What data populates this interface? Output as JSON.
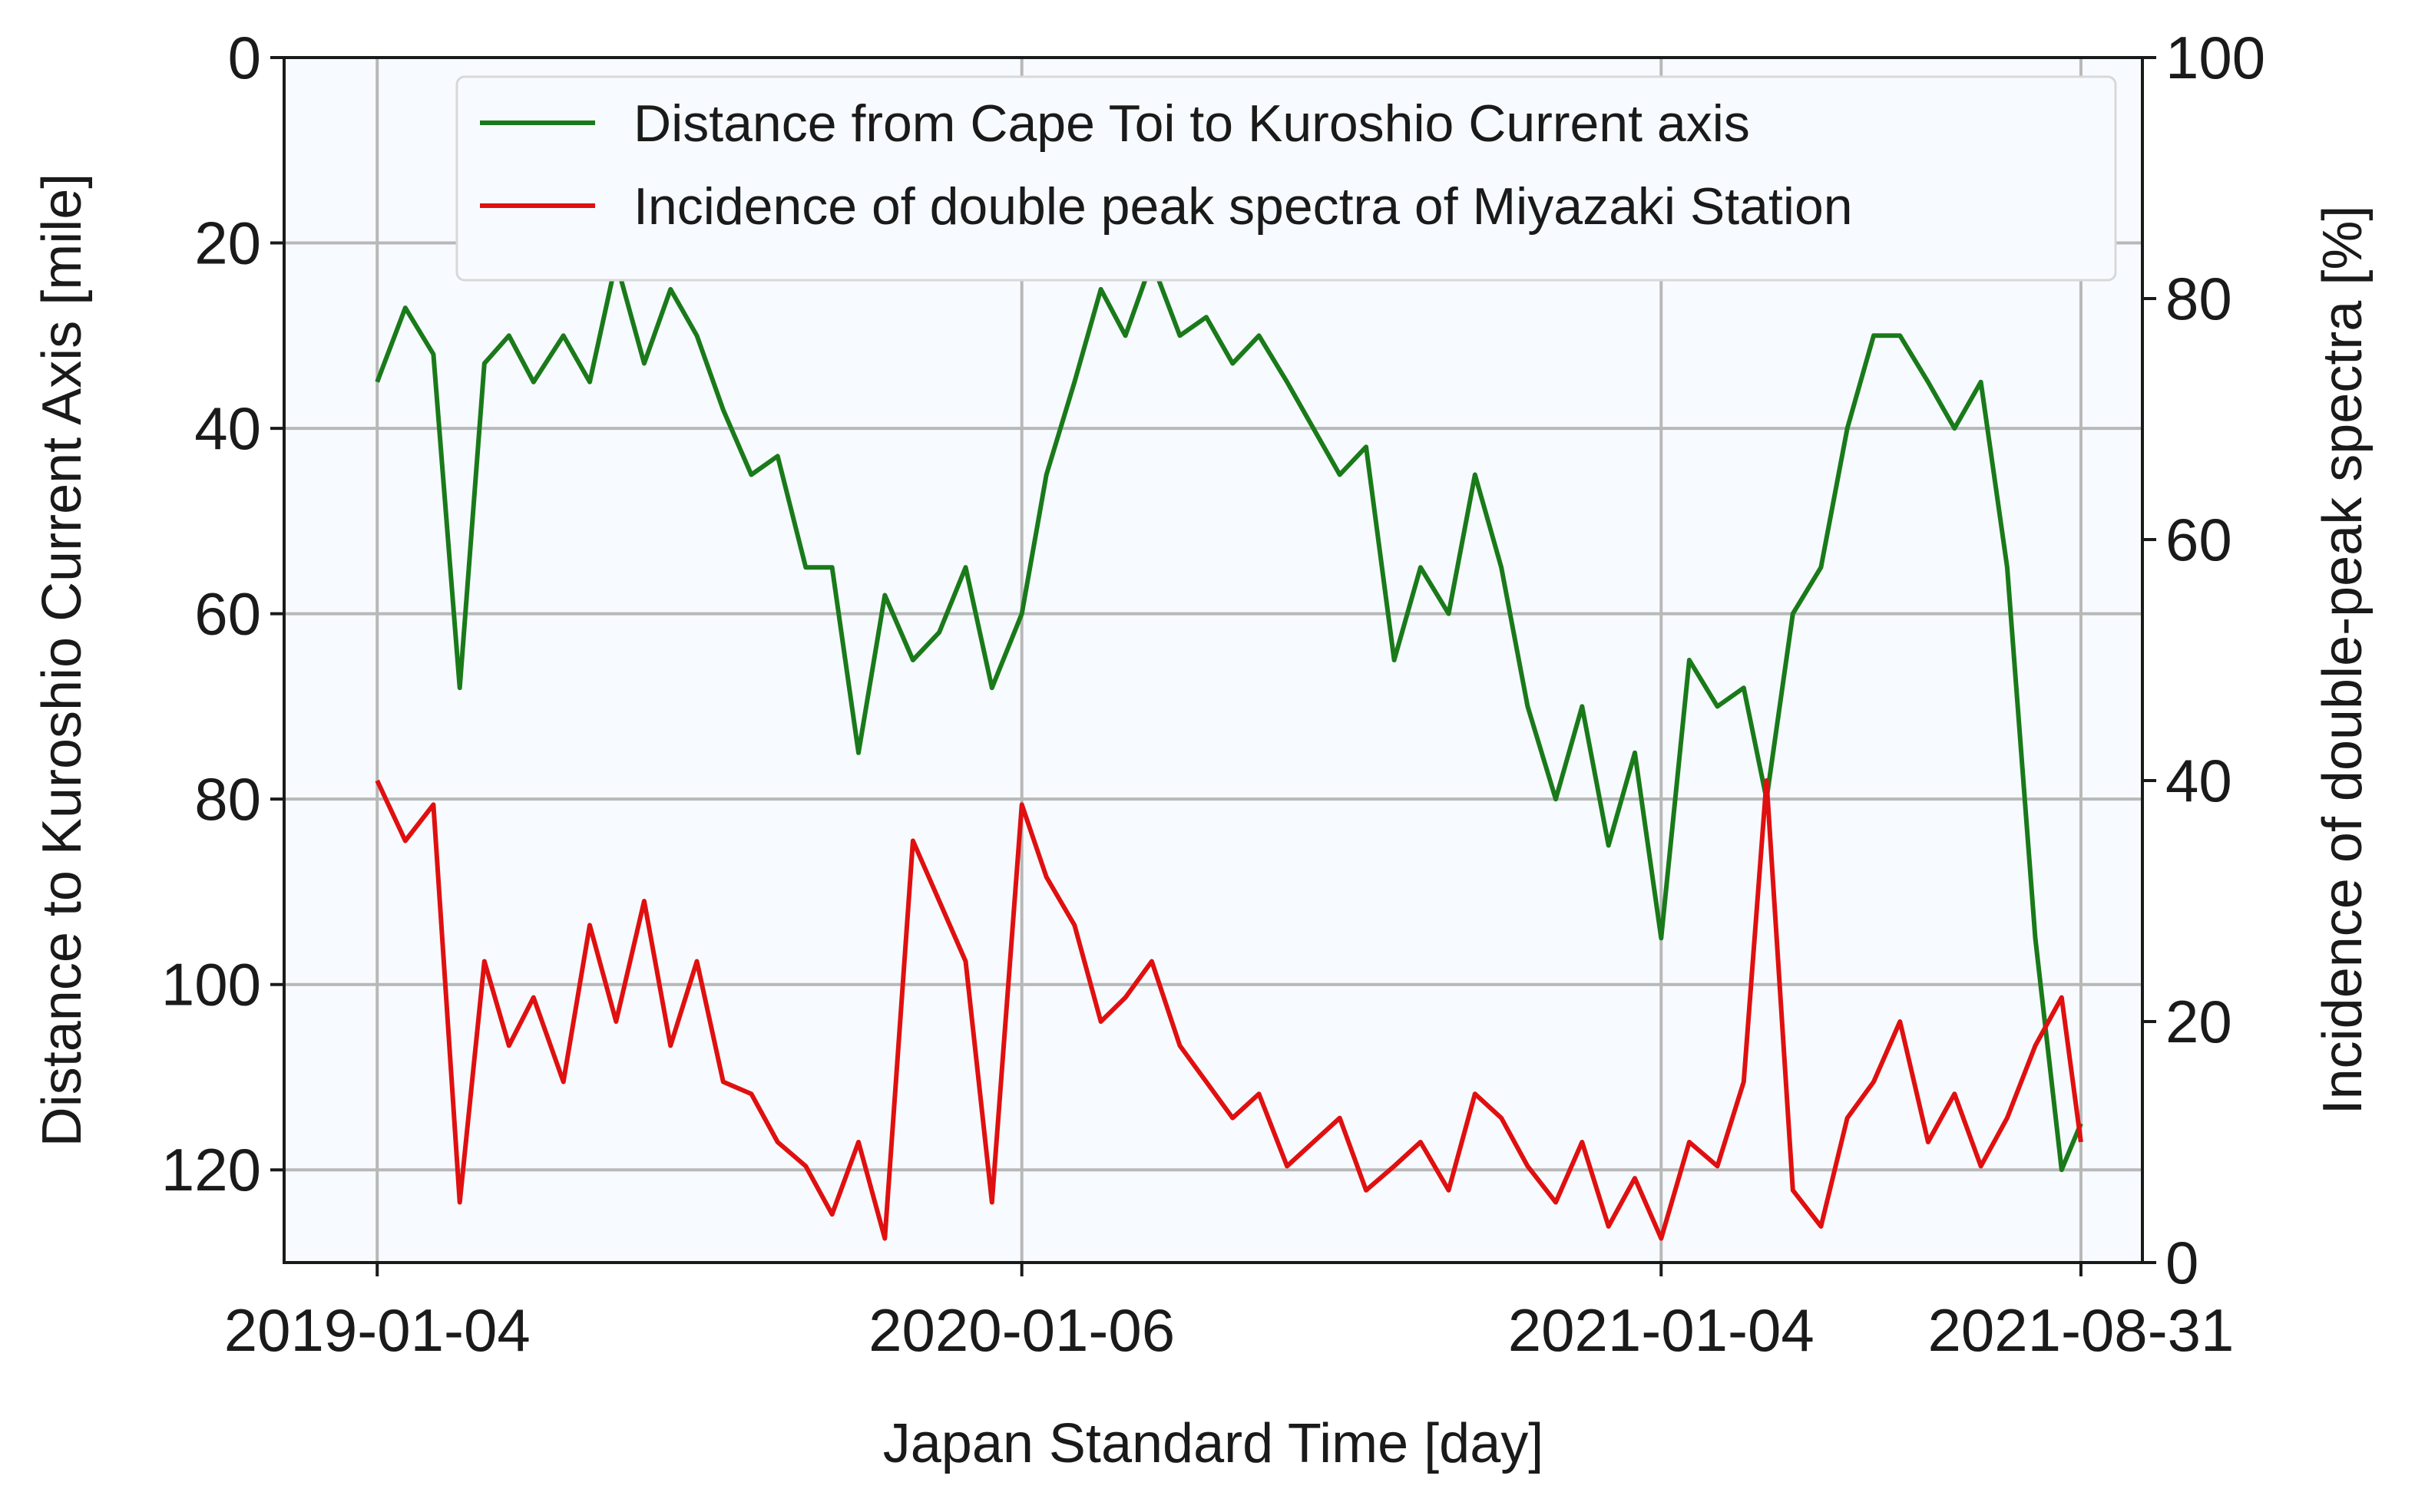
{
  "chart_data": {
    "type": "line",
    "title": "",
    "xlabel": "Japan Standard Time [day]",
    "ylabel_left": "Distance to Kuroshio Current Axis [mile]",
    "ylabel_right": "Incidence of double-peak spectra [%]",
    "x_ticks": [
      "2019-01-04",
      "2020-01-06",
      "2021-01-04",
      "2021-08-31"
    ],
    "xlim": [
      "2018-11-12",
      "2021-10-05"
    ],
    "ylim_left": [
      130,
      0
    ],
    "ylim_right": [
      0,
      100
    ],
    "left_ticks": [
      0,
      20,
      40,
      60,
      80,
      100,
      120
    ],
    "right_ticks": [
      0,
      20,
      40,
      60,
      80,
      100
    ],
    "grid": true,
    "legend_position": "top-right",
    "series": [
      {
        "name": "Distance from Cape Toi to Kuroshio Current axis",
        "axis": "left",
        "color": "#1a7a1a",
        "x": [
          "2019-01-04",
          "2019-01-20",
          "2019-02-05",
          "2019-02-20",
          "2019-03-06",
          "2019-03-20",
          "2019-04-03",
          "2019-04-20",
          "2019-05-05",
          "2019-05-20",
          "2019-06-05",
          "2019-06-20",
          "2019-07-05",
          "2019-07-20",
          "2019-08-05",
          "2019-08-20",
          "2019-09-05",
          "2019-09-20",
          "2019-10-05",
          "2019-10-20",
          "2019-11-05",
          "2019-11-20",
          "2019-12-05",
          "2019-12-20",
          "2020-01-06",
          "2020-01-20",
          "2020-02-05",
          "2020-02-20",
          "2020-03-05",
          "2020-03-20",
          "2020-04-05",
          "2020-04-20",
          "2020-05-05",
          "2020-05-20",
          "2020-06-05",
          "2020-06-20",
          "2020-07-05",
          "2020-07-20",
          "2020-08-05",
          "2020-08-20",
          "2020-09-05",
          "2020-09-20",
          "2020-10-05",
          "2020-10-20",
          "2020-11-05",
          "2020-11-20",
          "2020-12-05",
          "2020-12-20",
          "2021-01-04",
          "2021-01-20",
          "2021-02-05",
          "2021-02-20",
          "2021-03-05",
          "2021-03-20",
          "2021-04-05",
          "2021-04-20",
          "2021-05-05",
          "2021-05-20",
          "2021-06-05",
          "2021-06-20",
          "2021-07-05",
          "2021-07-20",
          "2021-08-05",
          "2021-08-20",
          "2021-08-31"
        ],
        "values": [
          35,
          27,
          32,
          68,
          33,
          30,
          35,
          30,
          35,
          22,
          33,
          25,
          30,
          38,
          45,
          43,
          55,
          55,
          75,
          58,
          65,
          62,
          55,
          68,
          60,
          45,
          35,
          25,
          30,
          22,
          30,
          28,
          33,
          30,
          35,
          40,
          45,
          42,
          65,
          55,
          60,
          45,
          55,
          70,
          80,
          70,
          85,
          75,
          95,
          65,
          70,
          68,
          80,
          60,
          55,
          40,
          30,
          30,
          35,
          40,
          35,
          55,
          95,
          120,
          115
        ]
      },
      {
        "name": "Incidence of double peak spectra of Miyazaki Station",
        "axis": "right",
        "color": "#e01010",
        "x": [
          "2019-01-04",
          "2019-01-20",
          "2019-02-05",
          "2019-02-20",
          "2019-03-06",
          "2019-03-20",
          "2019-04-03",
          "2019-04-20",
          "2019-05-05",
          "2019-05-20",
          "2019-06-05",
          "2019-06-20",
          "2019-07-05",
          "2019-07-20",
          "2019-08-05",
          "2019-08-20",
          "2019-09-05",
          "2019-09-20",
          "2019-10-05",
          "2019-10-20",
          "2019-11-05",
          "2019-11-20",
          "2019-12-05",
          "2019-12-20",
          "2020-01-06",
          "2020-01-20",
          "2020-02-05",
          "2020-02-20",
          "2020-03-05",
          "2020-03-20",
          "2020-04-05",
          "2020-04-20",
          "2020-05-05",
          "2020-05-20",
          "2020-06-05",
          "2020-06-20",
          "2020-07-05",
          "2020-07-20",
          "2020-08-05",
          "2020-08-20",
          "2020-09-05",
          "2020-09-20",
          "2020-10-05",
          "2020-10-20",
          "2020-11-05",
          "2020-11-20",
          "2020-12-05",
          "2020-12-20",
          "2021-01-04",
          "2021-01-20",
          "2021-02-05",
          "2021-02-20",
          "2021-03-05",
          "2021-03-20",
          "2021-04-05",
          "2021-04-20",
          "2021-05-05",
          "2021-05-20",
          "2021-06-05",
          "2021-06-20",
          "2021-07-05",
          "2021-07-20",
          "2021-08-05",
          "2021-08-20",
          "2021-08-31"
        ],
        "values": [
          40,
          35,
          38,
          5,
          25,
          18,
          22,
          15,
          28,
          20,
          30,
          18,
          25,
          15,
          14,
          10,
          8,
          4,
          10,
          2,
          35,
          30,
          25,
          5,
          38,
          32,
          28,
          20,
          22,
          25,
          18,
          15,
          12,
          14,
          8,
          10,
          12,
          6,
          8,
          10,
          6,
          14,
          12,
          8,
          5,
          10,
          3,
          7,
          2,
          10,
          8,
          15,
          40,
          6,
          3,
          12,
          15,
          20,
          10,
          14,
          8,
          12,
          18,
          22,
          10
        ]
      }
    ]
  }
}
